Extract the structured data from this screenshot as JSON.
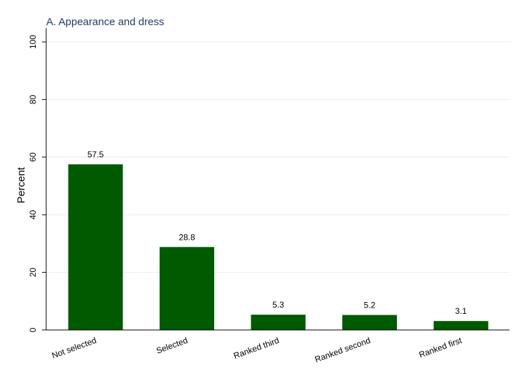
{
  "chart_data": {
    "type": "bar",
    "title": "A. Appearance and dress",
    "xlabel": "",
    "ylabel": "Percent",
    "categories": [
      "Not selected",
      "Selected",
      "Ranked third",
      "Ranked second",
      "Ranked first"
    ],
    "values": [
      57.5,
      28.8,
      5.3,
      5.2,
      3.1
    ],
    "data_labels": [
      "57.5",
      "28.8",
      "5.3",
      "5.2",
      "3.1"
    ],
    "ylim": [
      0,
      100
    ],
    "yticks": [
      0,
      20,
      40,
      60,
      80,
      100
    ],
    "grid": true,
    "colors": {
      "bar": "#005a00",
      "title": "#1f3a5f",
      "grid": "#e6ecf2",
      "axis": "#000000"
    }
  }
}
